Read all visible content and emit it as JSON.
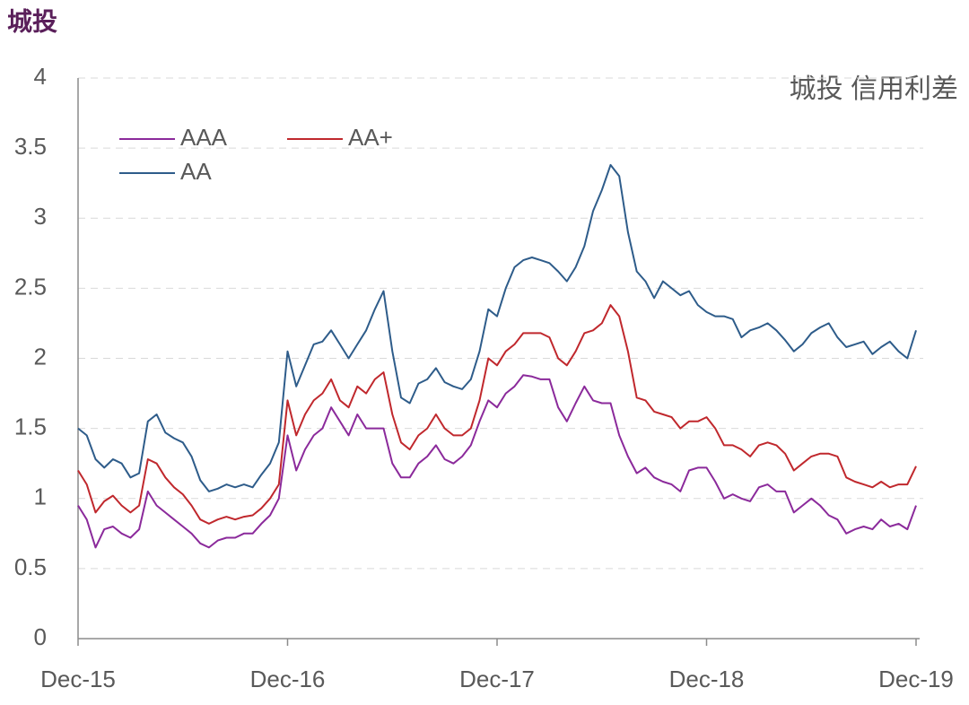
{
  "chart_data": {
    "type": "line",
    "title": "城投",
    "annotation": "城投 信用利差",
    "categories": [
      "Dec-15",
      null,
      null,
      null,
      null,
      null,
      null,
      null,
      null,
      null,
      null,
      null,
      null,
      null,
      null,
      null,
      null,
      null,
      null,
      null,
      null,
      null,
      null,
      null,
      "Dec-16",
      null,
      null,
      null,
      null,
      null,
      null,
      null,
      null,
      null,
      null,
      null,
      null,
      null,
      null,
      null,
      null,
      null,
      null,
      null,
      null,
      null,
      null,
      null,
      "Dec-17",
      null,
      null,
      null,
      null,
      null,
      null,
      null,
      null,
      null,
      null,
      null,
      null,
      null,
      null,
      null,
      null,
      null,
      null,
      null,
      null,
      null,
      null,
      null,
      "Dec-18",
      null,
      null,
      null,
      null,
      null,
      null,
      null,
      null,
      null,
      null,
      null,
      null,
      null,
      null,
      null,
      null,
      null,
      null,
      null,
      null,
      null,
      null,
      null,
      "Dec-19"
    ],
    "series": [
      {
        "name": "AAA",
        "color": "#8b2a9b",
        "values": [
          0.95,
          0.85,
          0.65,
          0.78,
          0.8,
          0.75,
          0.72,
          0.78,
          1.05,
          0.95,
          0.9,
          0.85,
          0.8,
          0.75,
          0.68,
          0.65,
          0.7,
          0.72,
          0.72,
          0.75,
          0.75,
          0.82,
          0.88,
          1.0,
          1.45,
          1.2,
          1.35,
          1.45,
          1.5,
          1.65,
          1.55,
          1.45,
          1.6,
          1.5,
          1.5,
          1.5,
          1.25,
          1.15,
          1.15,
          1.25,
          1.3,
          1.38,
          1.28,
          1.25,
          1.3,
          1.38,
          1.55,
          1.7,
          1.65,
          1.75,
          1.8,
          1.88,
          1.87,
          1.85,
          1.85,
          1.65,
          1.55,
          1.68,
          1.8,
          1.7,
          1.68,
          1.68,
          1.45,
          1.3,
          1.18,
          1.22,
          1.15,
          1.12,
          1.1,
          1.05,
          1.2,
          1.22,
          1.22,
          1.12,
          1.0,
          1.03,
          1.0,
          0.98,
          1.08,
          1.1,
          1.05,
          1.05,
          0.9,
          0.95,
          1.0,
          0.95,
          0.88,
          0.85,
          0.75,
          0.78,
          0.8,
          0.78,
          0.85,
          0.8,
          0.82,
          0.78,
          0.95
        ]
      },
      {
        "name": "AA+",
        "color": "#c0282d",
        "values": [
          1.2,
          1.1,
          0.9,
          0.98,
          1.02,
          0.95,
          0.9,
          0.95,
          1.28,
          1.25,
          1.15,
          1.08,
          1.03,
          0.95,
          0.85,
          0.82,
          0.85,
          0.87,
          0.85,
          0.87,
          0.88,
          0.93,
          1.0,
          1.1,
          1.7,
          1.45,
          1.6,
          1.7,
          1.75,
          1.85,
          1.7,
          1.65,
          1.8,
          1.75,
          1.85,
          1.9,
          1.6,
          1.4,
          1.35,
          1.45,
          1.5,
          1.6,
          1.5,
          1.45,
          1.45,
          1.5,
          1.7,
          2.0,
          1.95,
          2.05,
          2.1,
          2.18,
          2.18,
          2.18,
          2.15,
          2.0,
          1.95,
          2.05,
          2.18,
          2.2,
          2.25,
          2.38,
          2.3,
          2.05,
          1.72,
          1.7,
          1.62,
          1.6,
          1.58,
          1.5,
          1.55,
          1.55,
          1.58,
          1.5,
          1.38,
          1.38,
          1.35,
          1.3,
          1.38,
          1.4,
          1.38,
          1.32,
          1.2,
          1.25,
          1.3,
          1.32,
          1.32,
          1.3,
          1.15,
          1.12,
          1.1,
          1.08,
          1.12,
          1.08,
          1.1,
          1.1,
          1.23
        ]
      },
      {
        "name": "AA",
        "color": "#2e5c8a",
        "values": [
          1.5,
          1.45,
          1.28,
          1.22,
          1.28,
          1.25,
          1.15,
          1.18,
          1.55,
          1.6,
          1.47,
          1.43,
          1.4,
          1.3,
          1.13,
          1.05,
          1.07,
          1.1,
          1.08,
          1.1,
          1.08,
          1.17,
          1.25,
          1.4,
          2.05,
          1.8,
          1.95,
          2.1,
          2.12,
          2.2,
          2.1,
          2.0,
          2.1,
          2.2,
          2.35,
          2.48,
          2.05,
          1.72,
          1.68,
          1.82,
          1.85,
          1.93,
          1.83,
          1.8,
          1.78,
          1.85,
          2.05,
          2.35,
          2.3,
          2.5,
          2.65,
          2.7,
          2.72,
          2.7,
          2.68,
          2.62,
          2.55,
          2.65,
          2.8,
          3.05,
          3.2,
          3.38,
          3.3,
          2.9,
          2.62,
          2.55,
          2.43,
          2.55,
          2.5,
          2.45,
          2.48,
          2.38,
          2.33,
          2.3,
          2.3,
          2.28,
          2.15,
          2.2,
          2.22,
          2.25,
          2.2,
          2.13,
          2.05,
          2.1,
          2.18,
          2.22,
          2.25,
          2.15,
          2.08,
          2.1,
          2.12,
          2.03,
          2.08,
          2.12,
          2.05,
          2.0,
          2.2
        ]
      }
    ],
    "ylim": [
      0,
      4
    ],
    "yticks": [
      0,
      0.5,
      1,
      1.5,
      2,
      2.5,
      3,
      3.5,
      4
    ],
    "grid": true
  }
}
